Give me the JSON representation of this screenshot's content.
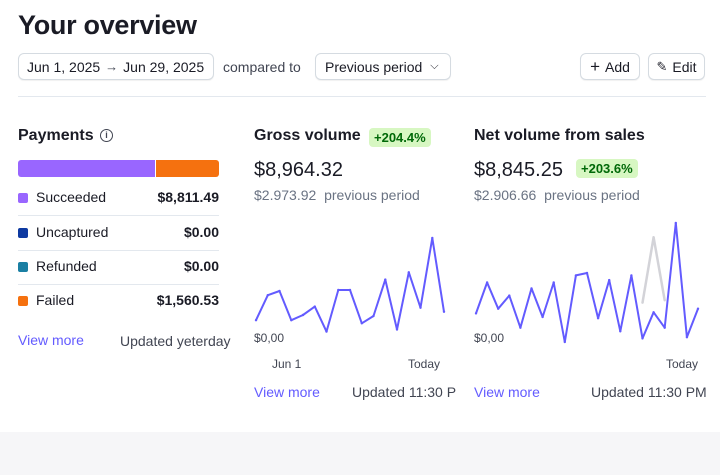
{
  "page": {
    "title": "Your overview"
  },
  "toolbar": {
    "date_start": "Jun 1, 2025",
    "date_end": "Jun 29, 2025",
    "compared_label": "compared to",
    "compare_value": "Previous period",
    "add_label": "Add",
    "edit_label": "Edit"
  },
  "payments": {
    "title": "Payments",
    "bar_fractions": {
      "succeeded": 0.68,
      "failed": 0.32
    },
    "rows": [
      {
        "label": "Succeeded",
        "value": "$8,811.49",
        "color": "#9966ff"
      },
      {
        "label": "Uncaptured",
        "value": "$0.00",
        "color": "#0e3aa1"
      },
      {
        "label": "Refunded",
        "value": "$0.00",
        "color": "#1a7fa3"
      },
      {
        "label": "Failed",
        "value": "$1,560.53",
        "color": "#f5710f"
      }
    ],
    "view_more": "View more",
    "updated": "Updated yeterday"
  },
  "gross": {
    "title": "Gross volume",
    "badge": "+204.4%",
    "value": "$8,964.32",
    "prev_value": "$2.973.92",
    "prev_label": "previous period",
    "y_zero": "$0,00",
    "x_start": "Jun 1",
    "x_end": "Today",
    "view_more": "View more",
    "updated": "Updated 11:30 P"
  },
  "net": {
    "title": "Net volume from sales",
    "badge": "+203.6%",
    "value": "$8,845.25",
    "prev_value": "$2.906.66",
    "prev_label": "previous period",
    "y_zero": "$0,00",
    "x_end": "Today",
    "view_more": "View more",
    "updated": "Updated 11:30 PM"
  },
  "chart_data": [
    {
      "type": "line",
      "title": "Gross volume",
      "x_range": [
        "Jun 1",
        "Today"
      ],
      "ylim": [
        0,
        1000
      ],
      "series": [
        {
          "name": "Current period",
          "color": "#635bff",
          "values": [
            210,
            450,
            490,
            210,
            260,
            340,
            100,
            500,
            500,
            180,
            250,
            600,
            120,
            670,
            330,
            1000,
            290
          ]
        }
      ]
    },
    {
      "type": "line",
      "title": "Net volume from sales",
      "x_range": [
        "",
        "Today"
      ],
      "ylim": [
        0,
        1000
      ],
      "series": [
        {
          "name": "Current period",
          "color": "#635bff",
          "values": [
            240,
            500,
            280,
            390,
            120,
            450,
            210,
            500,
            0,
            560,
            580,
            200,
            520,
            90,
            560,
            30,
            250,
            120,
            1000,
            40,
            280
          ]
        },
        {
          "name": "Previous period",
          "color": "#d3d3d8",
          "values": [
            null,
            null,
            null,
            null,
            null,
            null,
            null,
            null,
            null,
            null,
            null,
            null,
            null,
            null,
            null,
            330,
            880,
            350,
            null,
            null,
            null
          ]
        }
      ]
    }
  ]
}
